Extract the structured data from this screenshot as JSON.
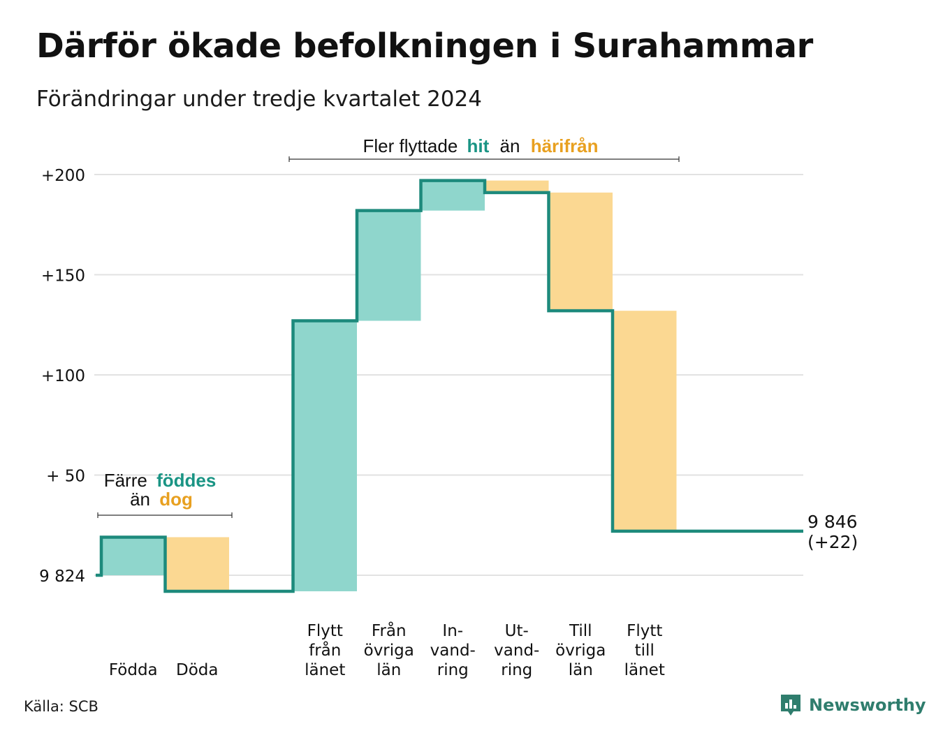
{
  "title": "Därför ökade befolkningen i Surahammar",
  "subtitle": "Förändringar under tredje kvartalet 2024",
  "source": "Källa: SCB",
  "brand": "Newsworthy",
  "colors": {
    "increase_fill": "#8fd6cc",
    "decrease_fill": "#fbd892",
    "line": "#1d8a7c",
    "teal_text": "#1a9484",
    "orange_text": "#e8a020",
    "grid": "#e2e2e2"
  },
  "annotations": {
    "births_deaths": {
      "line1_prefix": "Färre",
      "line1_highlight": "föddes",
      "line2_prefix": "än",
      "line2_highlight": "dog"
    },
    "migration": {
      "prefix": "Fler flyttade",
      "highlight1": "hit",
      "middle": "än",
      "highlight2": "härifrån"
    }
  },
  "chart_data": {
    "type": "waterfall",
    "title": "Därför ökade befolkningen i Surahammar",
    "subtitle": "Förändringar under tredje kvartalet 2024",
    "start_value": 9824,
    "start_label": "9 824",
    "end_value": 9846,
    "end_label": "9 846",
    "end_change_label": "(+22)",
    "ylim": [
      -8,
      200
    ],
    "y_ticks": [
      {
        "value": 0,
        "label": "9 824"
      },
      {
        "value": 50,
        "label": "+ 50"
      },
      {
        "value": 100,
        "label": "+100"
      },
      {
        "value": 150,
        "label": "+150"
      },
      {
        "value": 200,
        "label": "+200"
      }
    ],
    "grid": true,
    "steps": [
      {
        "category": "Födda",
        "label_lines": [
          "Födda"
        ],
        "value": 19
      },
      {
        "category": "Döda",
        "label_lines": [
          "Döda"
        ],
        "value": -27
      },
      {
        "category": "",
        "label_lines": [],
        "value": 0
      },
      {
        "category": "Flytt från länet",
        "label_lines": [
          "Flytt",
          "från",
          "länet"
        ],
        "value": 135
      },
      {
        "category": "Från övriga län",
        "label_lines": [
          "Från",
          "övriga",
          "län"
        ],
        "value": 55
      },
      {
        "category": "In-vandring",
        "label_lines": [
          "In-",
          "vand-",
          "ring"
        ],
        "value": 15
      },
      {
        "category": "Ut-vandring",
        "label_lines": [
          "Ut-",
          "vand-",
          "ring"
        ],
        "value": -6
      },
      {
        "category": "Till övriga län",
        "label_lines": [
          "Till",
          "övriga",
          "län"
        ],
        "value": -59
      },
      {
        "category": "Flytt till länet",
        "label_lines": [
          "Flytt",
          "till",
          "länet"
        ],
        "value": -110
      },
      {
        "category": "",
        "label_lines": [],
        "value": 0
      }
    ]
  }
}
